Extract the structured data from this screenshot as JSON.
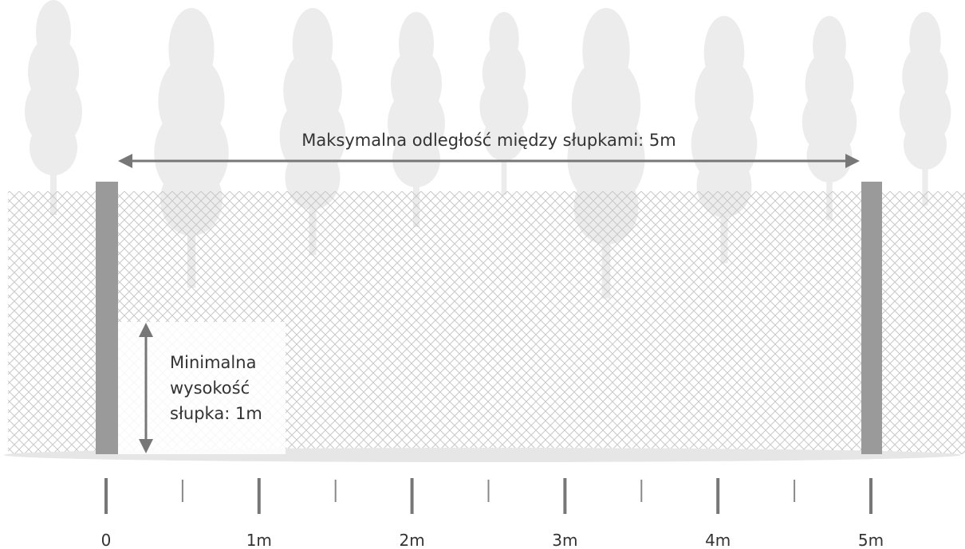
{
  "title": "Maksymalna odległość między słupkami: 5m",
  "height_note": [
    "Minimalna",
    "wysokość",
    "słupka: 1m"
  ],
  "ruler": {
    "labels": [
      "0",
      "1m",
      "2m",
      "3m",
      "4m",
      "5m"
    ]
  }
}
